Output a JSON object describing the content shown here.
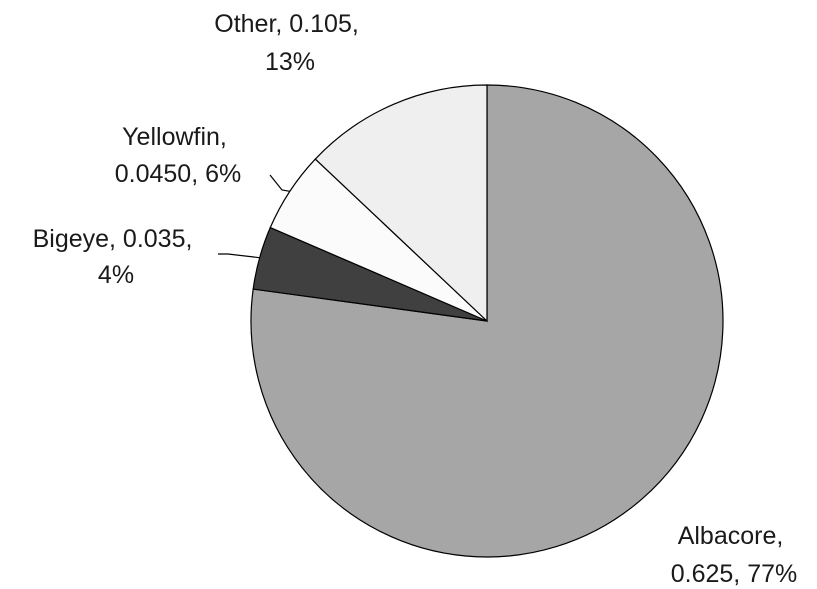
{
  "chart_data": {
    "type": "pie",
    "title": "",
    "start_angle_deg": 0,
    "direction": "clockwise",
    "slices": [
      {
        "name": "Albacore",
        "value": 0.625,
        "percent": "77%",
        "label_lines": [
          "Albacore,",
          "0.625, 77%"
        ],
        "color": "#a6a6a6"
      },
      {
        "name": "Bigeye",
        "value": 0.035,
        "percent": "4%",
        "label_lines": [
          "Bigeye, 0.035,",
          "4%"
        ],
        "color": "#404040"
      },
      {
        "name": "Yellowfin",
        "value": 0.045,
        "percent": "6%",
        "label_lines": [
          "Yellowfin,",
          "0.0450, 6%"
        ],
        "color": "#fbfbfb"
      },
      {
        "name": "Other",
        "value": 0.105,
        "percent": "13%",
        "label_lines": [
          "Other, 0.105,",
          "13%"
        ],
        "color": "#efefef"
      }
    ]
  }
}
